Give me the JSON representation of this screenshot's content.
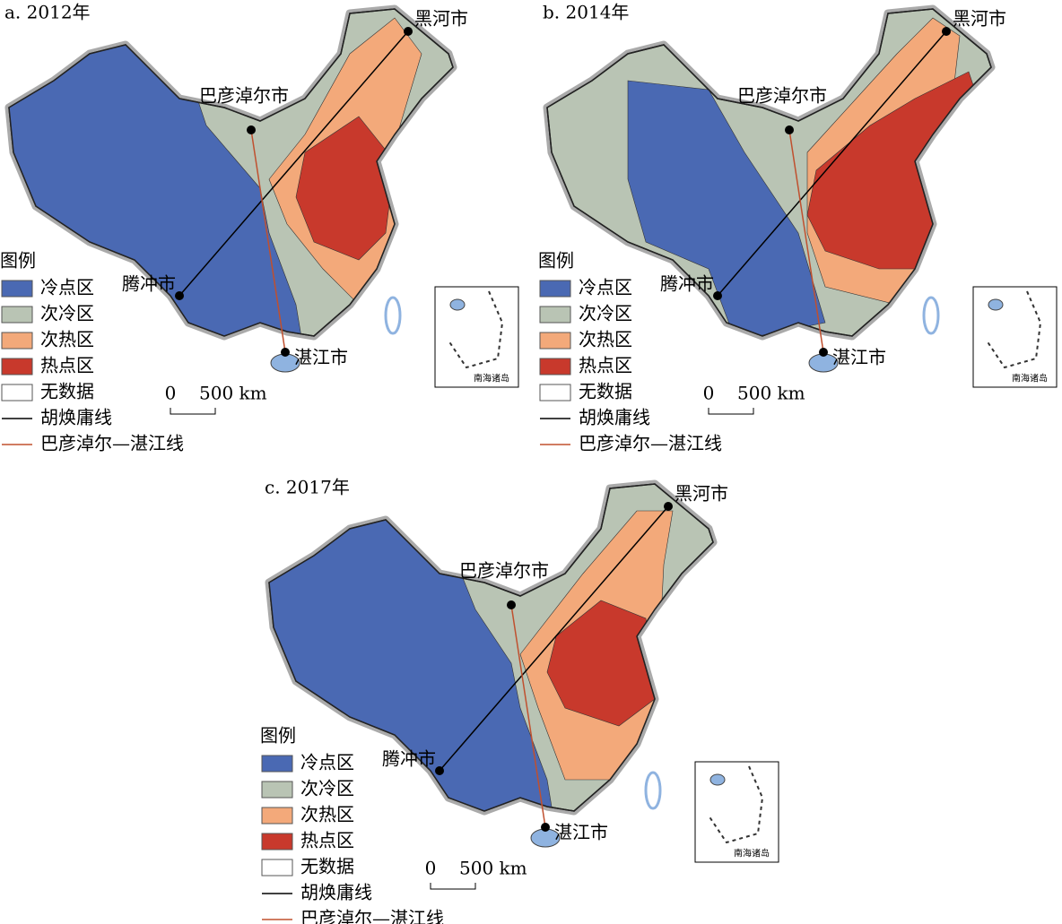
{
  "panels": [
    {
      "title": "a. 2012年",
      "cities": [
        "黑河市",
        "巴彦淖尔市",
        "腾冲市",
        "湛江市"
      ],
      "legend": {
        "title": "图例",
        "items": [
          {
            "label": "冷点区",
            "color": "#4a69b3"
          },
          {
            "label": "次冷区",
            "color": "#b9c4b4"
          },
          {
            "label": "次热区",
            "color": "#f3a97a"
          },
          {
            "label": "热点区",
            "color": "#c8392c"
          },
          {
            "label": "无数据",
            "color": "#ffffff"
          }
        ],
        "lines": [
          {
            "label": "胡焕庸线",
            "color": "#000000"
          },
          {
            "label": "巴彦淖尔—湛江线",
            "color": "#c0502f"
          }
        ]
      },
      "scale_bar": {
        "start": "0",
        "end": "500 km"
      },
      "inset": "南海诸岛"
    },
    {
      "title": "b. 2014年",
      "cities": [
        "黑河市",
        "巴彦淖尔市",
        "腾冲市",
        "湛江市"
      ],
      "legend": {
        "title": "图例",
        "items": [
          {
            "label": "冷点区",
            "color": "#4a69b3"
          },
          {
            "label": "次冷区",
            "color": "#b9c4b4"
          },
          {
            "label": "次热区",
            "color": "#f3a97a"
          },
          {
            "label": "热点区",
            "color": "#c8392c"
          },
          {
            "label": "无数据",
            "color": "#ffffff"
          }
        ],
        "lines": [
          {
            "label": "胡焕庸线",
            "color": "#000000"
          },
          {
            "label": "巴彦淖尔—湛江线",
            "color": "#c0502f"
          }
        ]
      },
      "scale_bar": {
        "start": "0",
        "end": "500 km"
      },
      "inset": "南海诸岛"
    },
    {
      "title": "c. 2017年",
      "cities": [
        "黑河市",
        "巴彦淖尔市",
        "腾冲市",
        "湛江市"
      ],
      "legend": {
        "title": "图例",
        "items": [
          {
            "label": "冷点区",
            "color": "#4a69b3"
          },
          {
            "label": "次冷区",
            "color": "#b9c4b4"
          },
          {
            "label": "次热区",
            "color": "#f3a97a"
          },
          {
            "label": "热点区",
            "color": "#c8392c"
          },
          {
            "label": "无数据",
            "color": "#ffffff"
          }
        ],
        "lines": [
          {
            "label": "胡焕庸线",
            "color": "#000000"
          },
          {
            "label": "巴彦淖尔—湛江线",
            "color": "#c0502f"
          }
        ]
      },
      "scale_bar": {
        "start": "0",
        "end": "500 km"
      },
      "inset": "南海诸岛"
    }
  ]
}
